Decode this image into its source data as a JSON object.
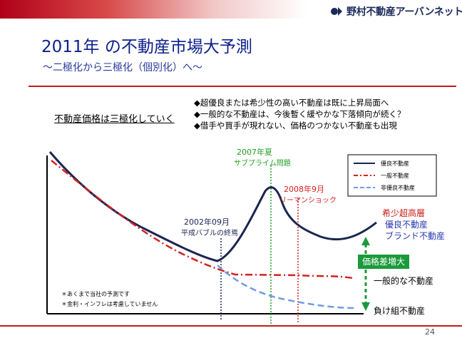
{
  "header": {
    "company": "野村不動産アーバンネット"
  },
  "title": "2011年 の不動産市場大予測",
  "subtitle": "～二極化から三極化（個別化）へ～",
  "left_heading": "不動産価格は三極化していく",
  "bullets": [
    "◆超優良または希少性の高い不動産は既に上昇局面へ",
    "◆一般的な不動産は、今後暫く緩やかな下落傾向が続く？",
    "◆借手や買手が現れない、価格のつかない不動産も出現"
  ],
  "annotations": {
    "summer2007": "2007年夏",
    "subprime": "サブプライム問題",
    "sep2008": "2008年9月",
    "lehman": "リーマンショック",
    "sep2002": "2002年09月",
    "bubble_end": "平成バブルの終焉",
    "price_gap": "価格差増大",
    "premium1": "希少超高層",
    "premium2": "優良不動産",
    "premium3": "ブランド不動産",
    "general": "一般的な不動産",
    "losers": "負け組不動産"
  },
  "notes": [
    "＊あくまで当社の予測です",
    "＊金利・インフレは考慮していません"
  ],
  "legend": [
    {
      "name": "優良不動産",
      "color": "#1a2550"
    },
    {
      "name": "一般不動産",
      "color": "#d52020"
    },
    {
      "name": "非優良不動産",
      "color": "#6f9ae0"
    }
  ],
  "colors": {
    "premium": "#1a2550",
    "general": "#d52020",
    "poor": "#6f9ae0",
    "guide_2007": "#20a020",
    "guide_2008": "#d52020",
    "guide_2002": "#1a2550",
    "gap_badge": "#1a9a3a"
  },
  "page_number": "24"
}
